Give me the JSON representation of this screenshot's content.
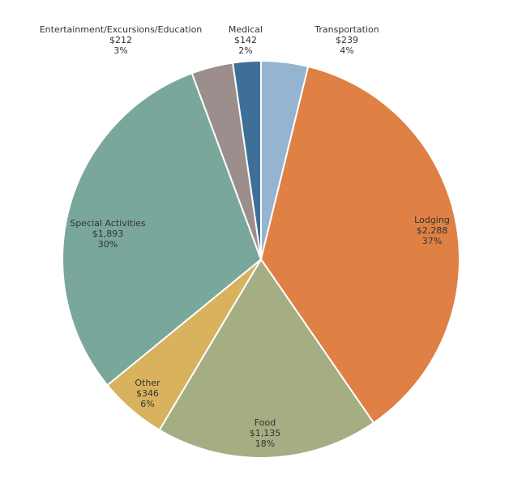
{
  "chart_data": {
    "type": "pie",
    "title": "",
    "start_angle_deg": 0,
    "direction": "clockwise",
    "slices": [
      {
        "label": "Transportation",
        "value_label": "$239",
        "percent_label": "4%",
        "value": 239,
        "color": "#94b4d2"
      },
      {
        "label": "Lodging",
        "value_label": "$2,288",
        "percent_label": "37%",
        "value": 2288,
        "color": "#df8045"
      },
      {
        "label": "Food",
        "value_label": "$1,135",
        "percent_label": "18%",
        "value": 1135,
        "color": "#a5ad82"
      },
      {
        "label": "Other",
        "value_label": "$346",
        "percent_label": "6%",
        "value": 346,
        "color": "#d8b25c"
      },
      {
        "label": "Special Activities",
        "value_label": "$1,893",
        "percent_label": "30%",
        "value": 1893,
        "color": "#7aa79b"
      },
      {
        "label": "Entertainment/Excursions/Education",
        "value_label": "$212",
        "percent_label": "3%",
        "value": 212,
        "color": "#9c8e8c"
      },
      {
        "label": "Medical",
        "value_label": "$142",
        "percent_label": "2%",
        "value": 142,
        "color": "#3e6f98"
      }
    ],
    "legend": "none",
    "slice_border_color": "#ffffff"
  }
}
